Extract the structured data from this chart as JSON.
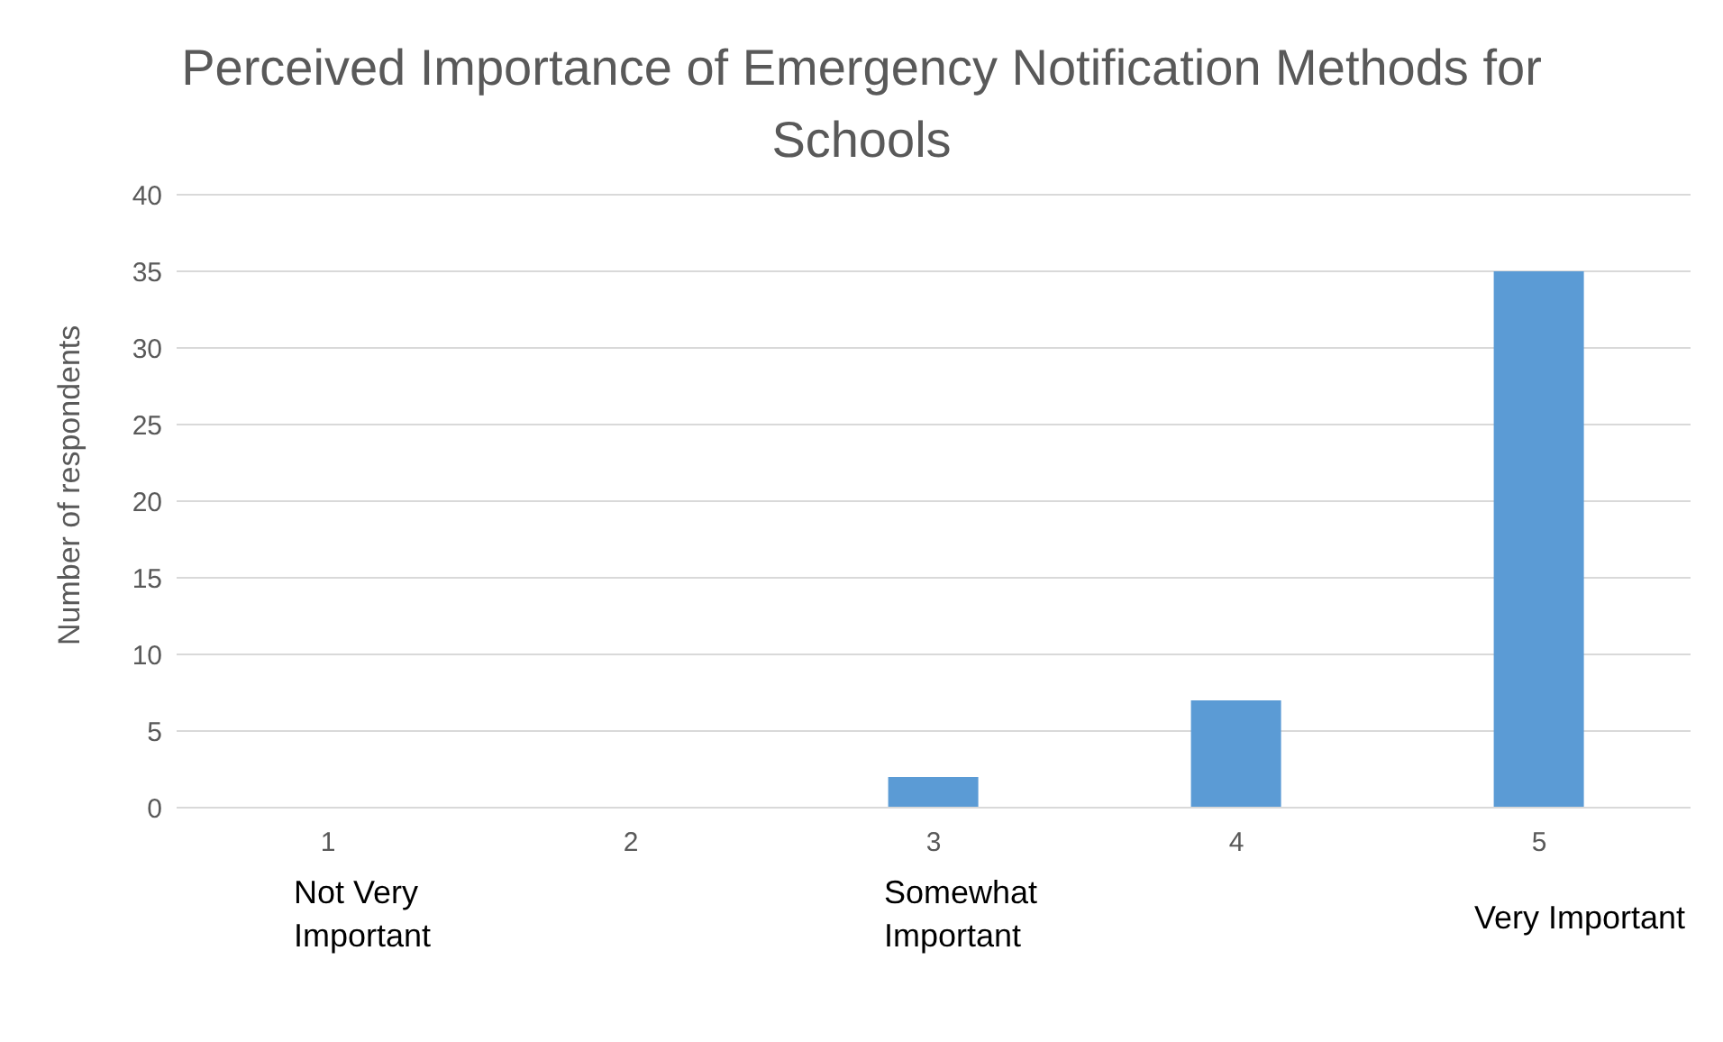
{
  "chart_data": {
    "type": "bar",
    "title": "Perceived Importance of Emergency Notification Methods for Schools",
    "categories": [
      "1",
      "2",
      "3",
      "4",
      "5"
    ],
    "values": [
      0,
      0,
      2,
      7,
      35
    ],
    "color": "#5b9bd5",
    "ylabel": "Number of respondents",
    "ylim": [
      0,
      40
    ],
    "yticks": [
      0,
      5,
      10,
      15,
      20,
      25,
      30,
      35,
      40
    ],
    "grid": "y",
    "annotations": [
      "Not Very Important",
      "Somewhat Important",
      "Very Important"
    ]
  }
}
